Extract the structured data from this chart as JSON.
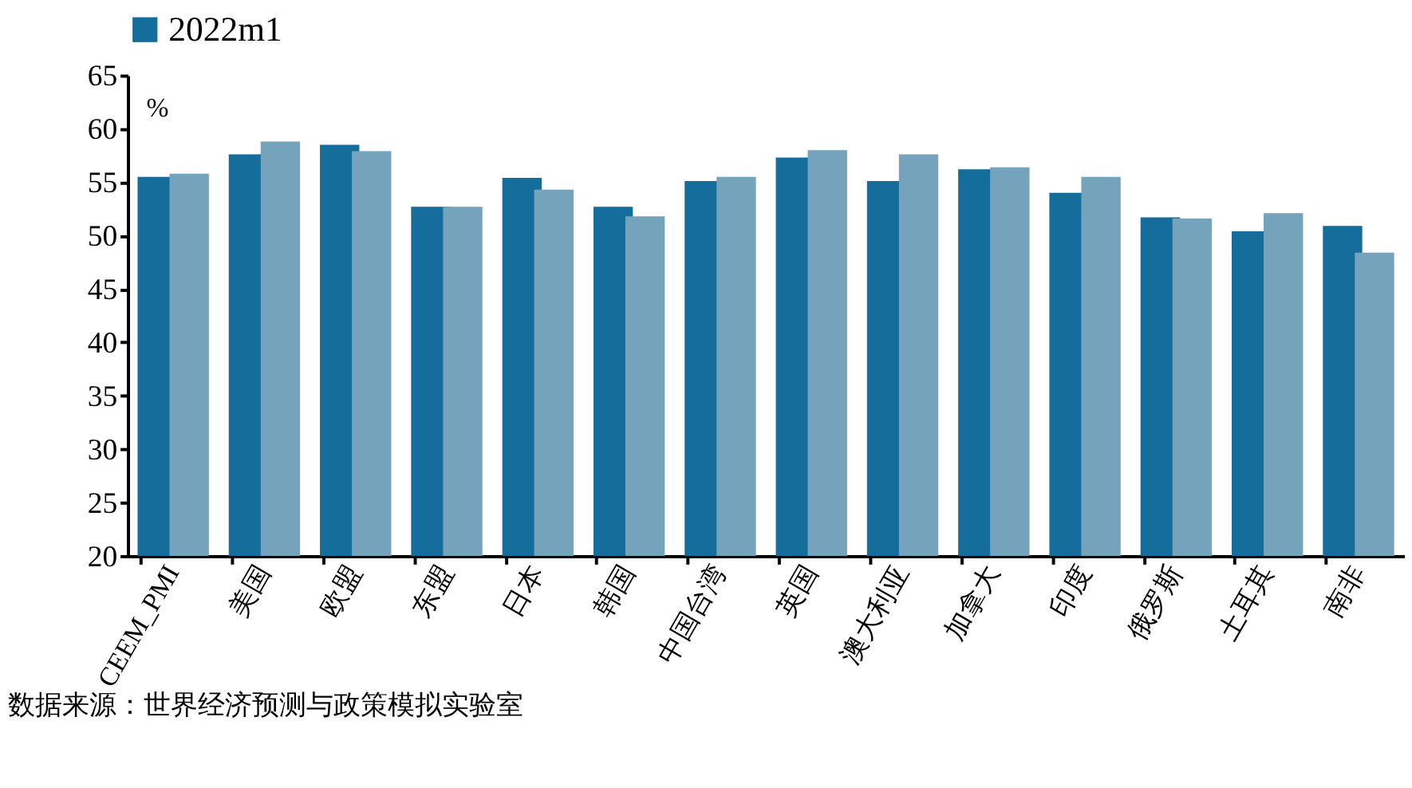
{
  "chart_data": {
    "type": "bar",
    "categories": [
      "CEEM_PMI",
      "美国",
      "欧盟",
      "东盟",
      "日本",
      "韩国",
      "中国台湾",
      "英国",
      "澳大利亚",
      "加拿大",
      "印度",
      "俄罗斯",
      "土耳其",
      "南非"
    ],
    "series": [
      {
        "name": "2022m1",
        "color": "#156d9c",
        "values": [
          55.5,
          57.6,
          58.5,
          52.7,
          55.4,
          52.7,
          55.1,
          57.3,
          55.1,
          56.2,
          54.0,
          51.7,
          50.4,
          50.9
        ]
      },
      {
        "color": "#76a3bc",
        "values": [
          55.8,
          58.8,
          57.9,
          52.7,
          54.3,
          51.8,
          55.5,
          58.0,
          57.6,
          56.4,
          55.5,
          51.6,
          52.1,
          48.4
        ]
      }
    ],
    "ylim": [
      20,
      65
    ],
    "yticks": [
      20,
      25,
      30,
      35,
      40,
      45,
      50,
      55,
      60,
      65
    ],
    "grid": false,
    "legend": "top",
    "annotations": [
      "%",
      "数据来源：世界经济预测与政策模拟实验室"
    ]
  }
}
